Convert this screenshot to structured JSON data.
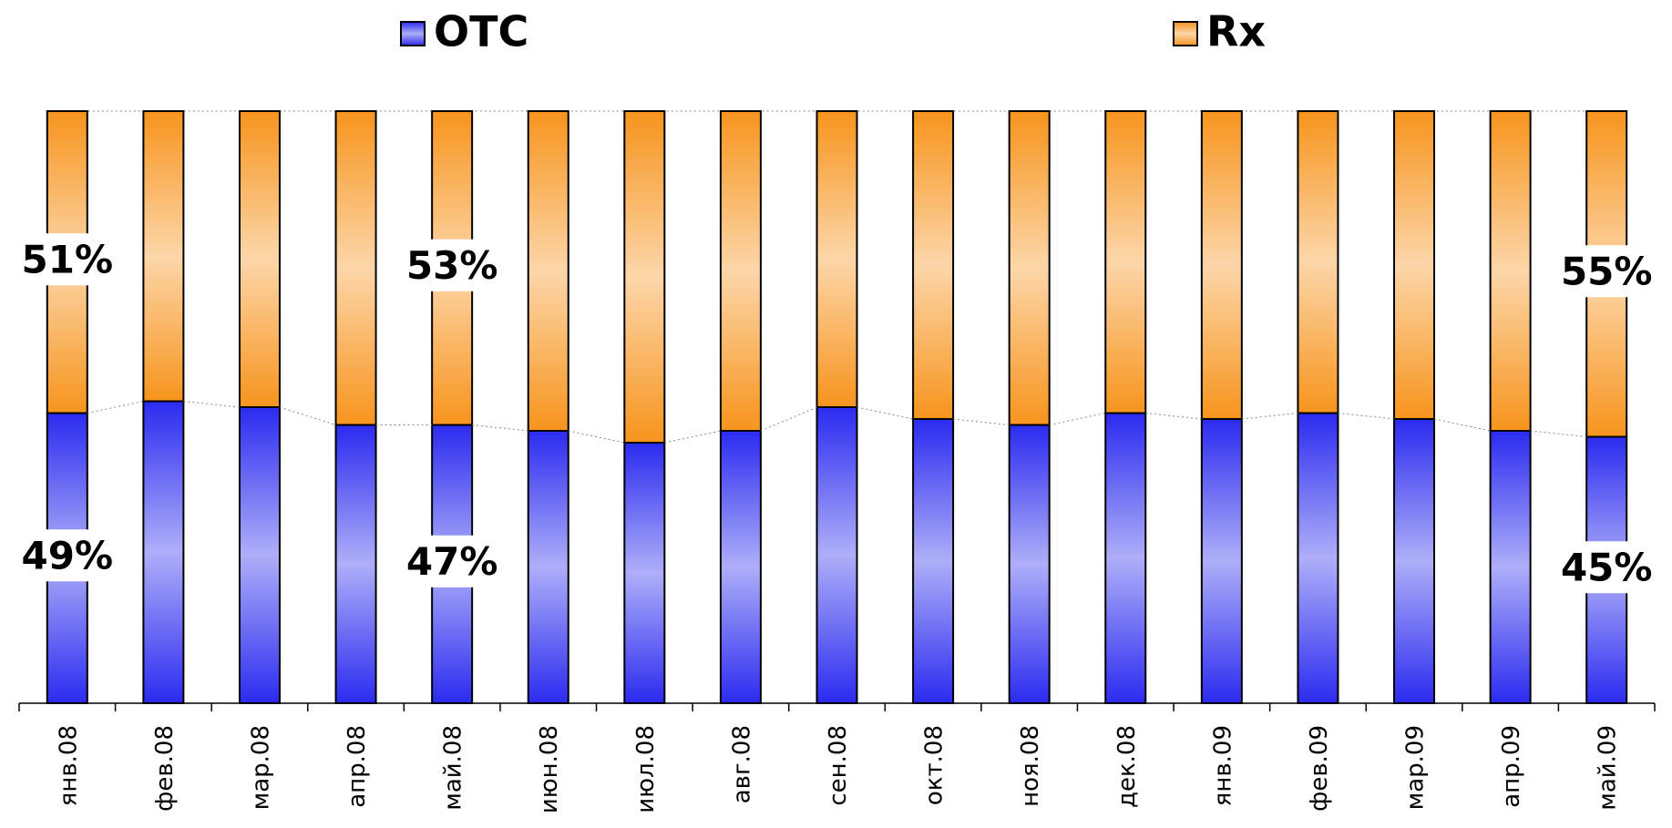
{
  "chart_data": {
    "type": "stacked_bar_100",
    "categories": [
      "янв.08",
      "фев.08",
      "мар.08",
      "апр.08",
      "май.08",
      "июн.08",
      "июл.08",
      "авг.08",
      "сен.08",
      "окт.08",
      "ноя.08",
      "дек.08",
      "янв.09",
      "фев.09",
      "мар.09",
      "апр.09",
      "май.09"
    ],
    "series": [
      {
        "name": "OTC",
        "color": "#2b2bf0",
        "values": [
          49,
          51,
          50,
          47,
          47,
          46,
          44,
          46,
          50,
          48,
          47,
          49,
          48,
          49,
          48,
          46,
          45
        ],
        "value_labels": [
          "49%",
          null,
          null,
          null,
          "47%",
          null,
          null,
          null,
          null,
          null,
          null,
          null,
          null,
          null,
          null,
          null,
          "45%"
        ]
      },
      {
        "name": "Rx",
        "color": "#f7941d",
        "values": [
          51,
          49,
          50,
          53,
          53,
          54,
          56,
          54,
          50,
          52,
          53,
          51,
          52,
          51,
          52,
          54,
          55
        ],
        "value_labels": [
          "51%",
          null,
          null,
          null,
          "53%",
          null,
          null,
          null,
          null,
          null,
          null,
          null,
          null,
          null,
          null,
          null,
          "55%"
        ]
      }
    ],
    "ylim": [
      0,
      100
    ],
    "connector_lines": true
  }
}
